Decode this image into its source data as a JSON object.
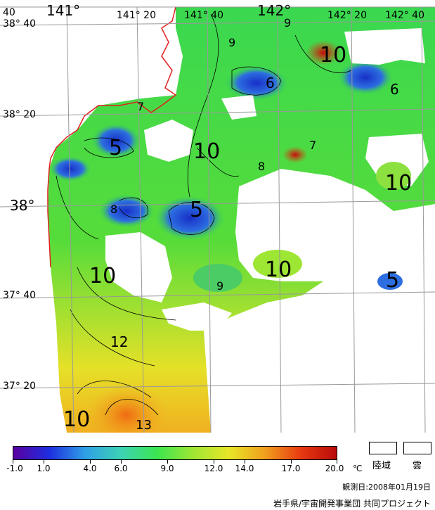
{
  "map": {
    "longitude_labels": [
      "40",
      "141°",
      "141° 20",
      "141° 40",
      "142°",
      "142° 20",
      "142° 40"
    ],
    "latitude_labels": [
      "38° 40",
      "38° 20",
      "38°",
      "37° 40",
      "37° 20"
    ],
    "contour_labels": [
      "9",
      "9",
      "10",
      "6",
      "6",
      "7",
      "5",
      "10",
      "7",
      "8",
      "10",
      "8",
      "5",
      "10",
      "10",
      "9",
      "5",
      "12",
      "10",
      "13"
    ]
  },
  "legend": {
    "colorbar_ticks": [
      "-1.0",
      "1.0",
      "4.0",
      "6.0",
      "9.0",
      "12.0",
      "14.0",
      "17.0",
      "20.0"
    ],
    "unit": "℃",
    "land_label": "陸域",
    "cloud_label": "雲",
    "colors": {
      "colorbar_stops": [
        "#5a00a0",
        "#1e2ee0",
        "#2fa0e6",
        "#3cd2b4",
        "#3ce650",
        "#9ee634",
        "#e8e628",
        "#f0a01e",
        "#e83a10",
        "#b80a0a"
      ],
      "land": "#ffffff",
      "cloud": "#ffffff",
      "coastline": "#e02020"
    }
  },
  "footer": {
    "observation_date": "観測日:2008年01月19日",
    "credit": "岩手県/宇宙開発事業団 共同プロジェクト"
  }
}
